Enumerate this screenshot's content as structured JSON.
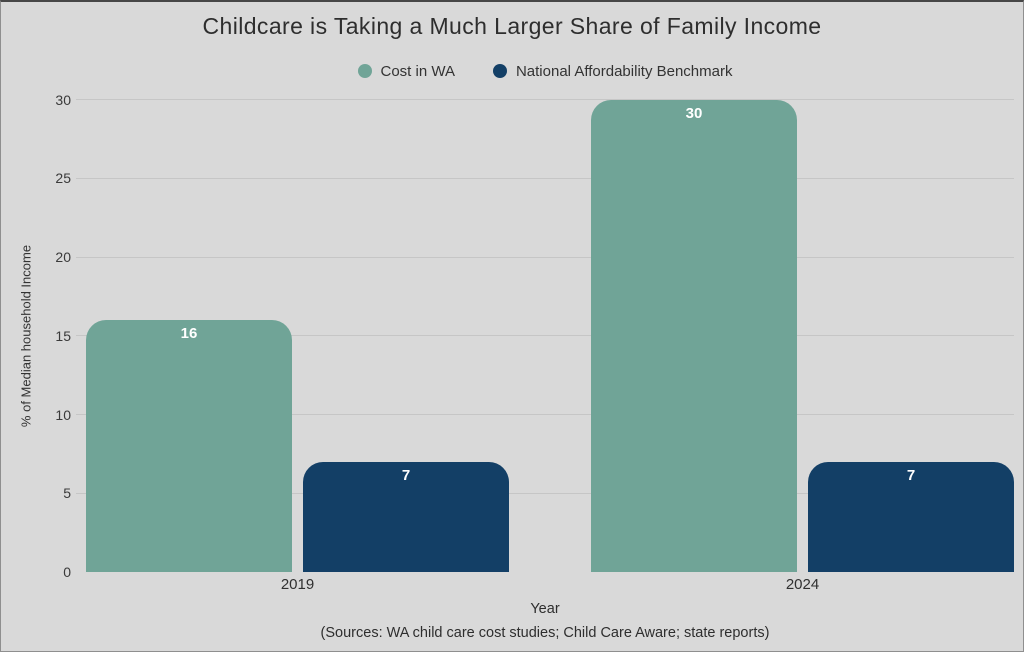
{
  "title": "Childcare is Taking a Much Larger Share of Family Income",
  "chart_data": {
    "type": "bar",
    "title": "Childcare is Taking a Much Larger Share of Family Income",
    "categories": [
      "2019",
      "2024"
    ],
    "series": [
      {
        "name": "Cost in WA",
        "color": "#70a497",
        "values": [
          16,
          30
        ]
      },
      {
        "name": "National Affordability Benchmark",
        "color": "#133f66",
        "values": [
          7,
          7
        ]
      }
    ],
    "bar_value_labels": [
      [
        16,
        7
      ],
      [
        30,
        7
      ]
    ],
    "xlabel": "Year",
    "ylabel": "% of Median household Income",
    "ylim": [
      0,
      30
    ],
    "yticks": [
      0,
      5,
      10,
      15,
      20,
      25,
      30
    ],
    "grid": true,
    "legend_position": "top-center",
    "background": "#d9d9d9",
    "gridline_color": "#c6c6c6",
    "bar_label_color": "#ffffff",
    "source_note": "(Sources: WA child care cost studies; Child Care Aware; state reports)"
  }
}
